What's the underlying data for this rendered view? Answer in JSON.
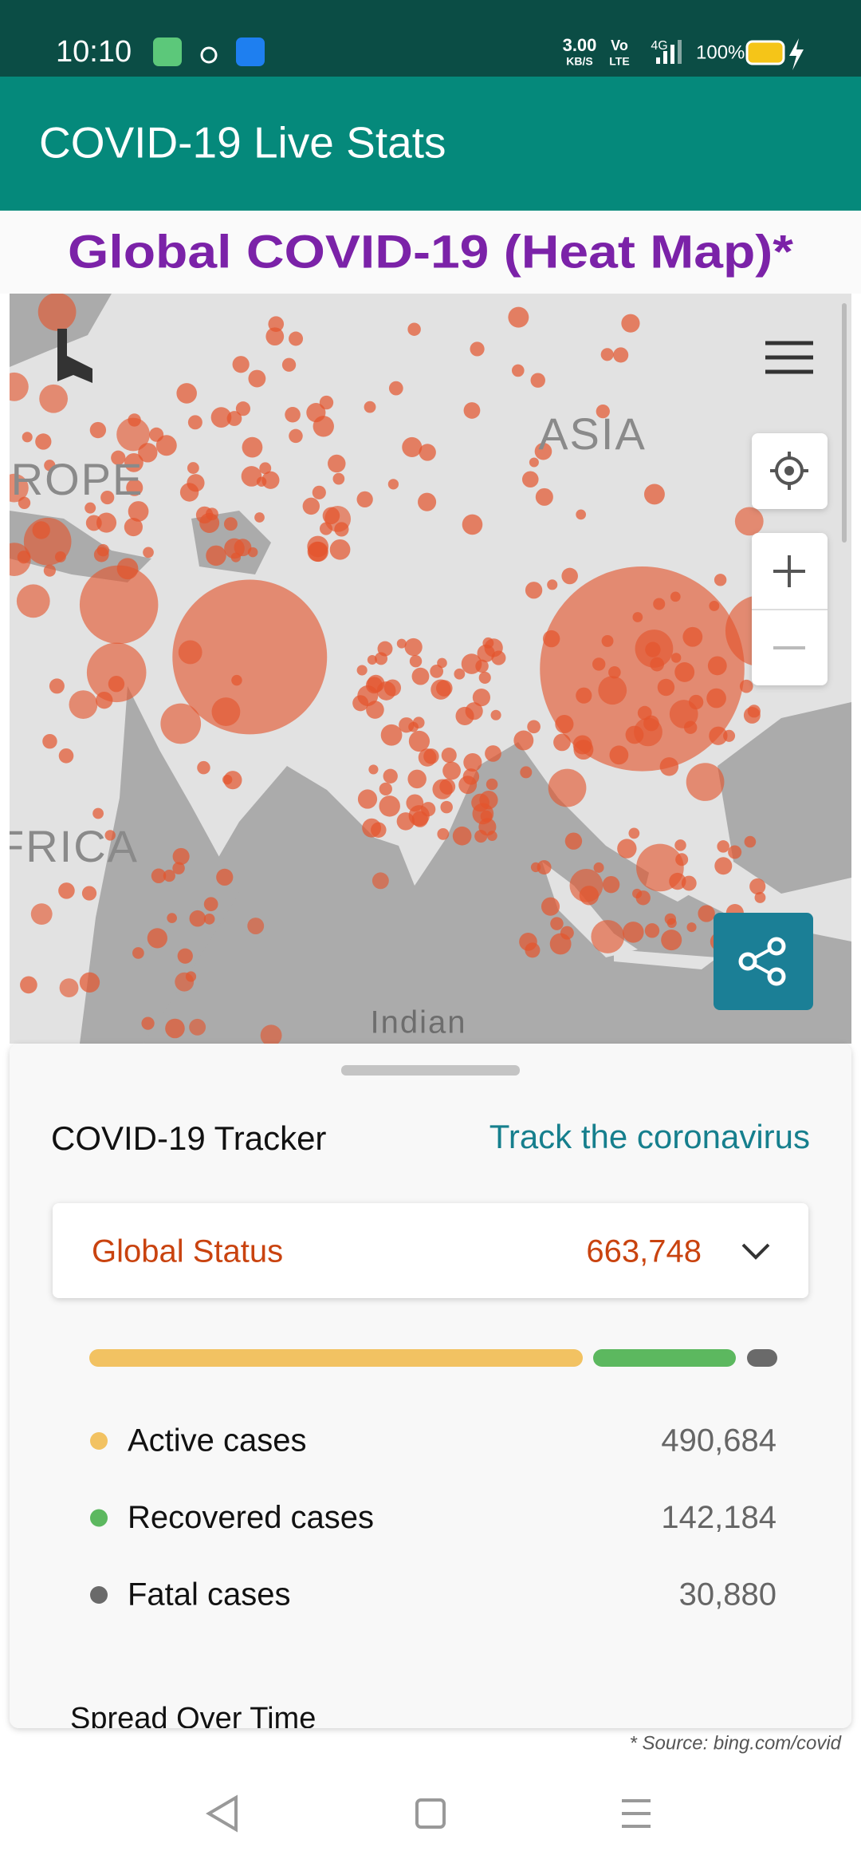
{
  "status_bar": {
    "time": "10:10",
    "speed": "3.00",
    "speed_unit": "KB/S",
    "volte_top": "Vo",
    "volte_bottom": "LTE",
    "network": "4G",
    "battery": "100%"
  },
  "app_bar": {
    "title": "COVID-19 Live Stats"
  },
  "heading": "Global COVID-19 (Heat Map)*",
  "map": {
    "labels": [
      "ASIA",
      "ROPE",
      "FRICA",
      "Indian"
    ]
  },
  "tracker": {
    "title": "COVID-19 Tracker",
    "link": "Track the coronavirus",
    "status_label": "Global Status",
    "status_value": "663,748",
    "rows": [
      {
        "label": "Active cases",
        "value": "490,684"
      },
      {
        "label": "Recovered cases",
        "value": "142,184"
      },
      {
        "label": "Fatal cases",
        "value": "30,880"
      }
    ],
    "section": "Spread Over Time"
  },
  "source": "* Source: bing.com/covid"
}
